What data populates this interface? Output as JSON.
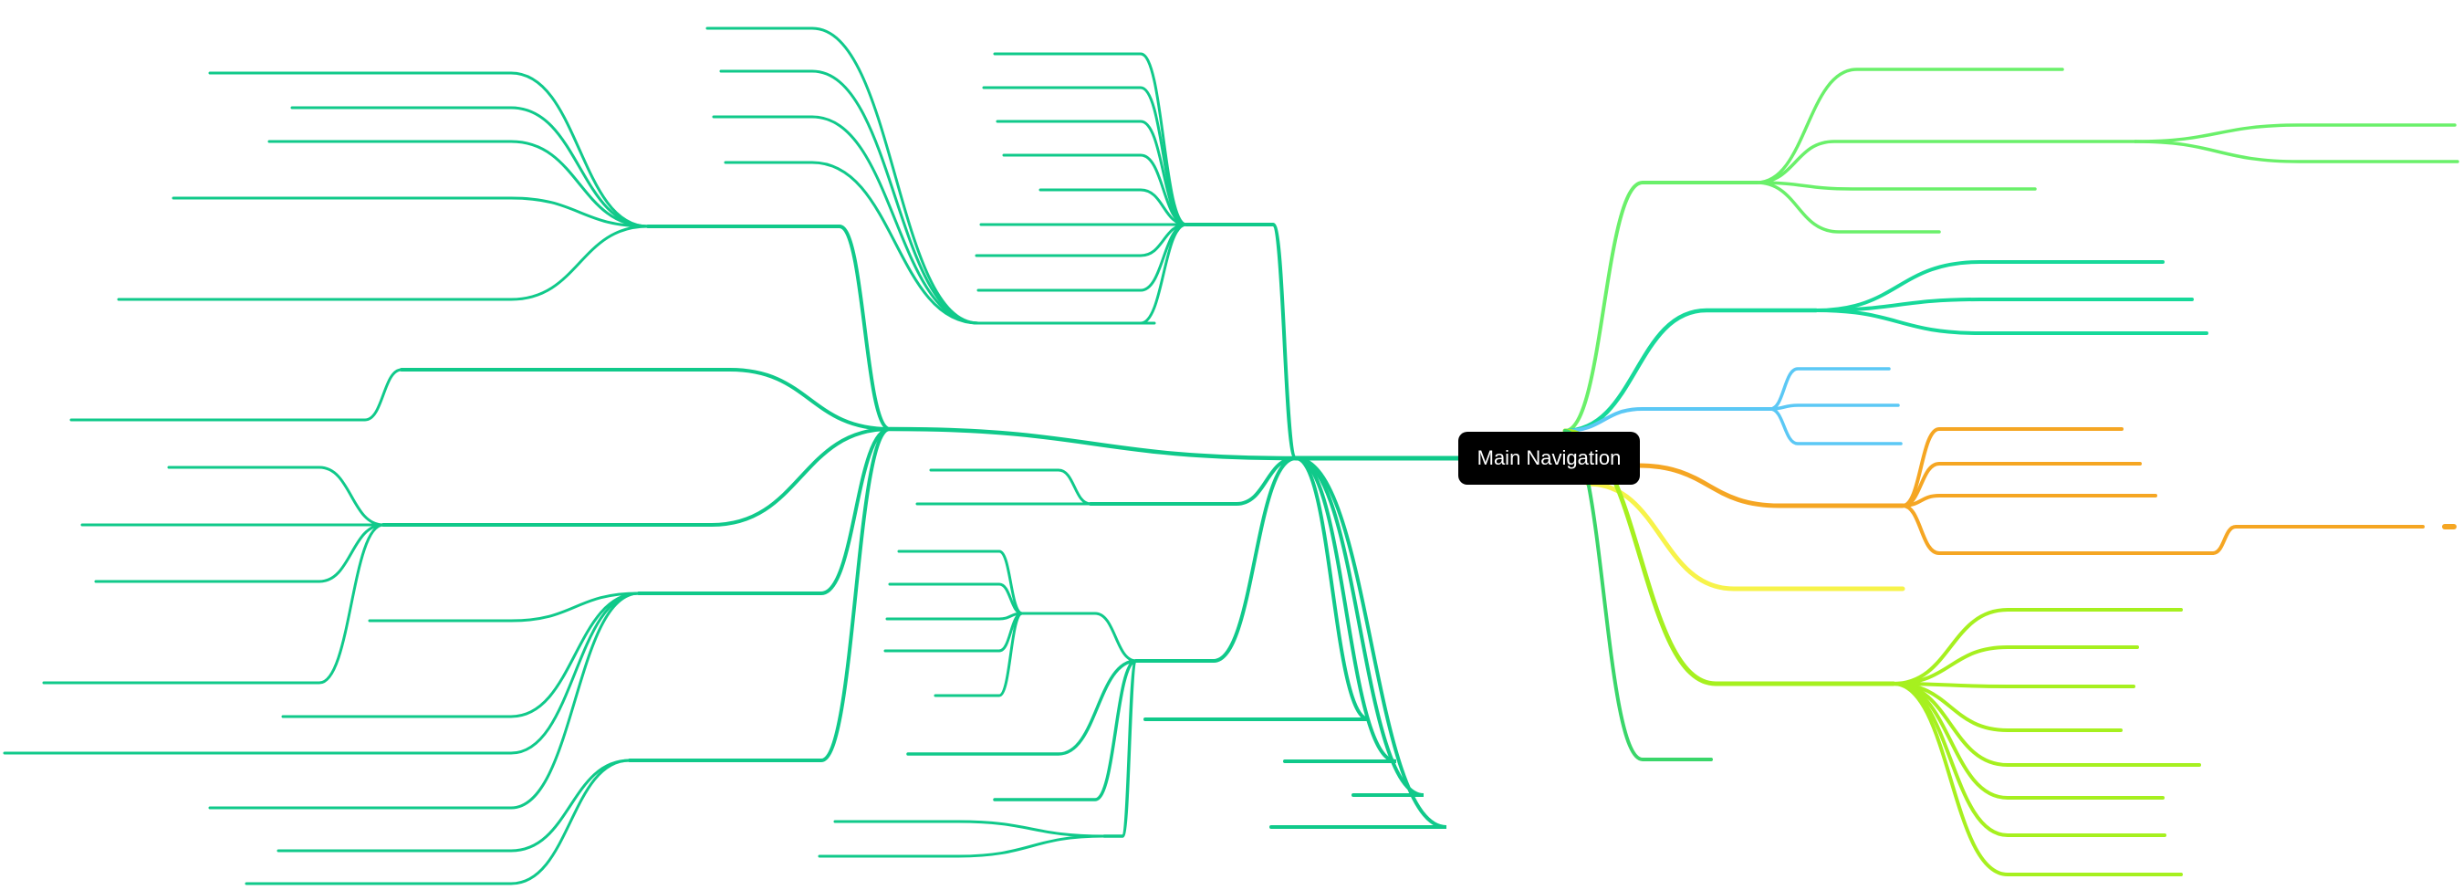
{
  "root": {
    "label": "Main Navigation"
  },
  "colors": {
    "root_fill": "#000000",
    "root_text": "#ffffff",
    "left_tree": "#10c98a",
    "right_branch_1": "#6af06a",
    "right_branch_2": "#17d99a",
    "right_branch_3": "#5bc8f5",
    "right_branch_4": "#f5a623",
    "right_branch_5": "#f7f34a",
    "right_branch_6": "#a6f01f",
    "right_branch_7": "#3ad66a"
  }
}
